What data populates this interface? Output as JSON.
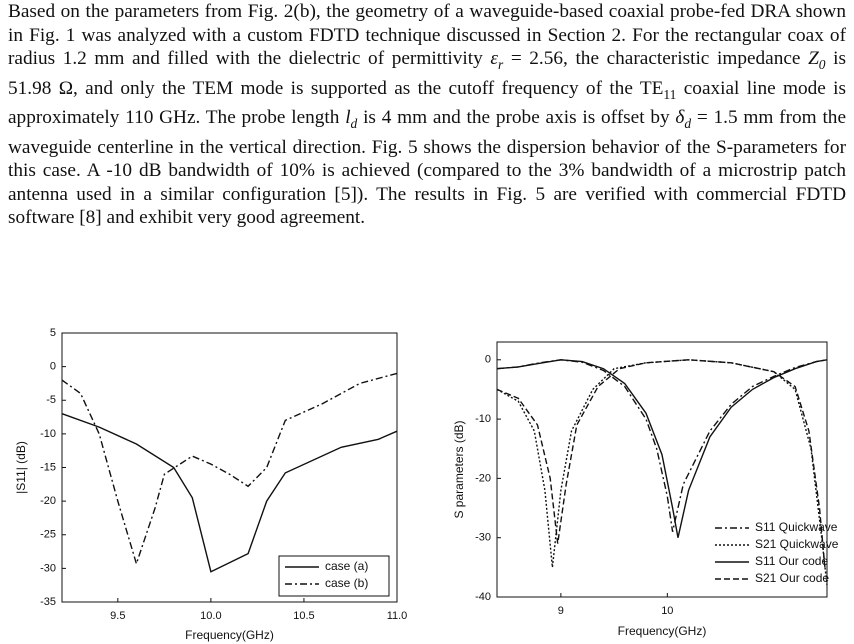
{
  "paragraph": {
    "runs": [
      {
        "text": "Based on the parameters from Fig. 2(b), the geometry of a waveguide-based coaxial probe-fed DRA shown in Fig. 1 was analyzed with a custom FDTD technique discussed in Section 2. For the rectangular coax of radius 1.2 mm and filled with the dielectric of permittivity ",
        "style": "normal"
      },
      {
        "text": "ε",
        "style": "italic"
      },
      {
        "text": "r",
        "style": "italic-sub"
      },
      {
        "text": " = 2.56, the characteristic impedance ",
        "style": "normal"
      },
      {
        "text": "Z",
        "style": "italic"
      },
      {
        "text": "0",
        "style": "italic-sub"
      },
      {
        "text": " is 51.98 Ω, and only the TEM mode is supported as the cutoff frequency of the TE",
        "style": "normal"
      },
      {
        "text": "11",
        "style": "sub"
      },
      {
        "text": " coaxial line mode is approximately 110 GHz. The probe length ",
        "style": "normal"
      },
      {
        "text": "l",
        "style": "italic"
      },
      {
        "text": "d",
        "style": "italic-sub"
      },
      {
        "text": " is 4 mm and the probe axis is offset by ",
        "style": "normal"
      },
      {
        "text": "δ",
        "style": "italic"
      },
      {
        "text": "d",
        "style": "italic-sub"
      },
      {
        "text": " = 1.5 mm from the waveguide centerline in the vertical direction. Fig. 5 shows the dispersion behavior of the S-parameters for this case. A -10 dB bandwidth of 10% is achieved (compared to the 3% bandwidth of a microstrip patch antenna used in a similar configuration [5]). The results in Fig. 5 are verified with commercial FDTD software [8] and exhibit very good agreement.",
        "style": "normal"
      }
    ]
  },
  "chart_data": [
    {
      "type": "line",
      "x_label": "Frequency(GHz)",
      "y_label": "|S11| (dB)",
      "xlim": [
        9.2,
        11.0
      ],
      "xticks": [
        9.5,
        {
          "value": 10,
          "label": "10.0"
        },
        10.5,
        {
          "value": 11,
          "label": "11.0"
        }
      ],
      "ylim": [
        -35,
        5
      ],
      "yticks": [
        -35,
        -30,
        -25,
        -20,
        -15,
        -10,
        -5,
        0,
        5
      ],
      "legend": "lower right",
      "legend_frame": true,
      "series": [
        {
          "name": "case (a)",
          "color": "#111111",
          "dash": "solid",
          "x": [
            9.2,
            9.4,
            9.6,
            9.8,
            9.9,
            10.0,
            10.2,
            10.3,
            10.4,
            10.7,
            10.9,
            11.0
          ],
          "values": [
            -7,
            -9,
            -11.5,
            -15,
            -19.5,
            -30.5,
            -27.8,
            -20,
            -15.8,
            -12,
            -10.8,
            -9.6
          ]
        },
        {
          "name": "case (b)",
          "color": "#111111",
          "dash": "dashdot",
          "x": [
            9.2,
            9.3,
            9.4,
            9.5,
            9.6,
            9.7,
            9.75,
            9.9,
            10.0,
            10.1,
            10.2,
            10.3,
            10.4,
            10.6,
            10.8,
            11.0
          ],
          "values": [
            -2,
            -4,
            -10,
            -20,
            -29.3,
            -21,
            -16,
            -13.3,
            -14.5,
            -16,
            -17.8,
            -15,
            -8,
            -5.5,
            -2.5,
            -1
          ]
        }
      ]
    },
    {
      "type": "line",
      "x_label": "Frequency(GHz)",
      "y_label": "S parameters (dB)",
      "xlim": [
        8.4,
        11.5
      ],
      "xticks": [
        9,
        10
      ],
      "ylim": [
        -40,
        3
      ],
      "yticks": [
        -40,
        -30,
        -20,
        -10,
        0
      ],
      "legend": "lower right",
      "legend_frame": false,
      "series": [
        {
          "name": "S11 Quickwave",
          "color": "#111111",
          "dash": "dashdot",
          "x": [
            8.4,
            8.6,
            8.8,
            9.0,
            9.2,
            9.4,
            9.6,
            9.8,
            9.9,
            10.0,
            10.05,
            10.15,
            10.4,
            10.6,
            10.8,
            11.0,
            11.2,
            11.4,
            11.5
          ],
          "values": [
            -1.5,
            -1.2,
            -0.5,
            0,
            -0.4,
            -1.8,
            -4.5,
            -10,
            -15,
            -23,
            -29,
            -21,
            -12,
            -7.5,
            -4.5,
            -2.8,
            -1.3,
            -0.3,
            0
          ]
        },
        {
          "name": "S21 Quickwave",
          "color": "#111111",
          "dash": "dot",
          "x": [
            8.4,
            8.6,
            8.75,
            8.85,
            8.92,
            9.0,
            9.1,
            9.3,
            9.5,
            9.8,
            10.2,
            10.6,
            11.0,
            11.2,
            11.35,
            11.45,
            11.5
          ],
          "values": [
            -5,
            -7,
            -12,
            -22,
            -35,
            -22,
            -12,
            -5,
            -1.5,
            -0.5,
            0,
            -0.5,
            -2,
            -5,
            -15,
            -30,
            -38
          ]
        },
        {
          "name": "S11 Our code",
          "color": "#111111",
          "dash": "solid",
          "x": [
            8.4,
            8.6,
            8.8,
            9.0,
            9.2,
            9.4,
            9.6,
            9.8,
            9.95,
            10.05,
            10.1,
            10.2,
            10.4,
            10.6,
            10.8,
            11.0,
            11.2,
            11.4,
            11.5
          ],
          "values": [
            -1.5,
            -1.2,
            -0.6,
            0,
            -0.3,
            -1.5,
            -4,
            -9,
            -16,
            -25,
            -30,
            -22,
            -13,
            -8,
            -5,
            -3,
            -1.5,
            -0.3,
            0
          ]
        },
        {
          "name": "S21 Our code",
          "color": "#111111",
          "dash": "dash",
          "x": [
            8.4,
            8.6,
            8.78,
            8.9,
            8.97,
            9.05,
            9.15,
            9.35,
            9.55,
            9.8,
            10.2,
            10.6,
            11.0,
            11.2,
            11.33,
            11.43,
            11.48
          ],
          "values": [
            -5,
            -6.5,
            -11,
            -20,
            -31,
            -21,
            -11,
            -4.5,
            -1.5,
            -0.5,
            0,
            -0.5,
            -2,
            -4.5,
            -12,
            -25,
            -35
          ]
        }
      ]
    }
  ]
}
